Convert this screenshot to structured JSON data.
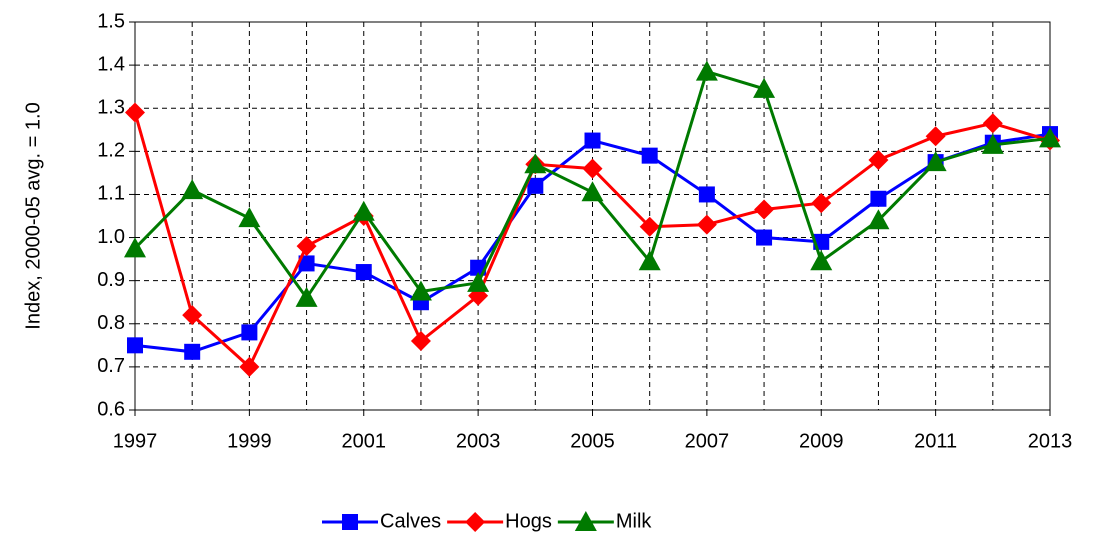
{
  "chart_data": {
    "type": "line",
    "y_label": "Index, 2000-05 avg. = 1.0",
    "x": [
      1997,
      1998,
      1999,
      2000,
      2001,
      2002,
      2003,
      2004,
      2005,
      2006,
      2007,
      2008,
      2009,
      2010,
      2011,
      2012,
      2013
    ],
    "xlim": [
      1997,
      2013
    ],
    "xticks": [
      1997,
      1999,
      2001,
      2003,
      2005,
      2007,
      2009,
      2011,
      2013
    ],
    "ylim": [
      0.6,
      1.5
    ],
    "yticks": [
      0.6,
      0.7,
      0.8,
      0.9,
      {
        "value": 1,
        "label": "1.0"
      },
      1.1,
      1.2,
      1.3,
      1.4,
      1.5
    ],
    "grid": true,
    "legend": "bottom",
    "series": [
      {
        "name": "Calves",
        "color": "#0000ff",
        "marker": "square",
        "values": [
          0.75,
          0.735,
          0.78,
          0.94,
          0.92,
          0.85,
          0.93,
          1.12,
          1.225,
          1.19,
          1.1,
          1.0,
          0.99,
          1.09,
          1.175,
          1.22,
          1.24
        ]
      },
      {
        "name": "Hogs",
        "color": "#ff0000",
        "marker": "diamond",
        "values": [
          1.29,
          0.82,
          0.7,
          0.98,
          1.05,
          0.76,
          0.865,
          1.17,
          1.16,
          1.025,
          1.03,
          1.065,
          1.08,
          1.18,
          1.235,
          1.265,
          1.225
        ]
      },
      {
        "name": "Milk",
        "color": "#007a00",
        "marker": "triangle",
        "values": [
          0.975,
          1.11,
          1.045,
          0.86,
          1.06,
          0.875,
          0.895,
          1.17,
          1.105,
          0.945,
          1.385,
          1.345,
          0.945,
          1.04,
          1.175,
          1.215,
          1.23
        ]
      }
    ]
  }
}
